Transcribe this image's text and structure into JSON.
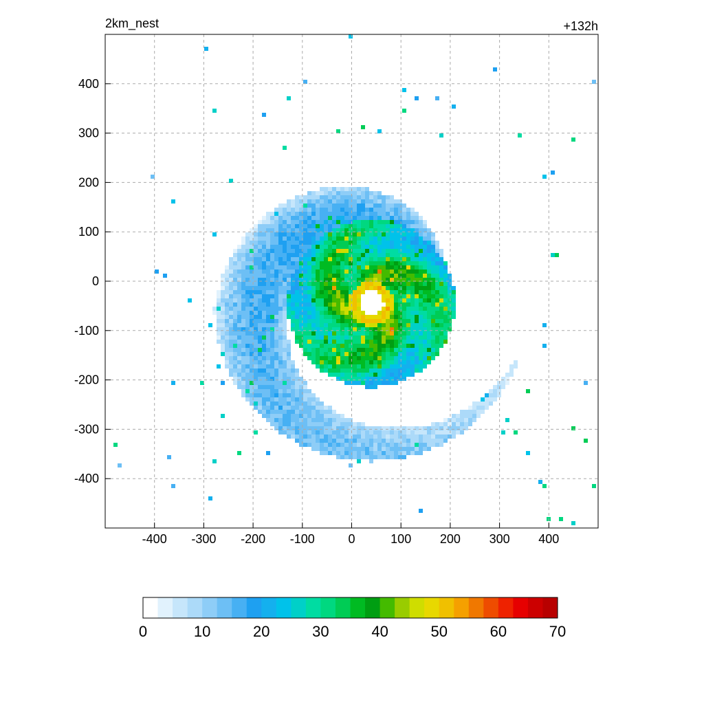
{
  "chart_data": {
    "type": "heatmap",
    "title_left": "2km_nest",
    "title_right": "+132h",
    "xlabel": "",
    "ylabel": "",
    "xlim": [
      -500,
      500
    ],
    "ylim": [
      -500,
      500
    ],
    "grid": true,
    "x_ticks": [
      -400,
      -300,
      -200,
      -100,
      0,
      100,
      200,
      300,
      400
    ],
    "y_ticks": [
      400,
      300,
      200,
      100,
      0,
      -100,
      -200,
      -300,
      -400
    ],
    "storm_center": [
      40,
      -45
    ],
    "colorbar": {
      "min": 0,
      "max": 70,
      "step": 2.5,
      "ticks": [
        0,
        10,
        20,
        30,
        40,
        50,
        60,
        70
      ],
      "colors": [
        "#ffffff",
        "#e1f2fd",
        "#c6e6fb",
        "#acdaf9",
        "#8ecdf7",
        "#6dbff5",
        "#47b0f3",
        "#1ea0f1",
        "#14b0ee",
        "#00c2ea",
        "#00d0c8",
        "#00dca2",
        "#00d880",
        "#00cc55",
        "#00bb22",
        "#009e12",
        "#44bb00",
        "#99cc00",
        "#cfdd00",
        "#e8d800",
        "#f0c000",
        "#f5a000",
        "#f07800",
        "#ee4c00",
        "#ee2200",
        "#e60000",
        "#cc0000",
        "#b80000",
        "#cc0088",
        "#e000c8",
        "#bb00cc",
        "#9922cc",
        "#9955dd",
        "#aa88ee"
      ]
    }
  }
}
